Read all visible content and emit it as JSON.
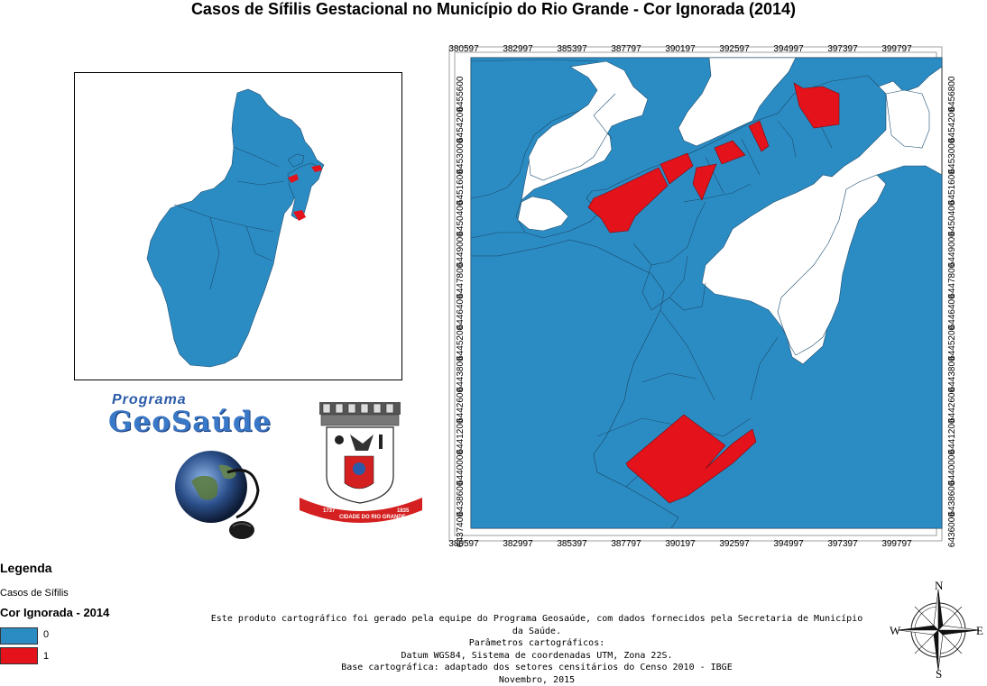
{
  "title": "Casos de Sífilis Gestacional no Município do Rio Grande - Cor Ignorada (2014)",
  "colors": {
    "category_0": "#2b8cc4",
    "category_1": "#e3121b",
    "water": "#ffffff"
  },
  "map": {
    "x_ticks": [
      "380597",
      "382997",
      "385397",
      "387797",
      "390197",
      "392597",
      "394997",
      "397397",
      "399797"
    ],
    "y_ticks_left": [
      "6455600",
      "6454200",
      "6453000",
      "6451600",
      "6450400",
      "6449000",
      "6447800",
      "6446400",
      "6445200",
      "6443800",
      "6442600",
      "6441200",
      "6440000",
      "6438600",
      "6437400"
    ],
    "y_ticks_right": [
      "6456800",
      "6454200",
      "6453000",
      "6451600",
      "6450400",
      "6449000",
      "6447800",
      "6446400",
      "6445200",
      "6443800",
      "6442600",
      "6441200",
      "6440000",
      "6438600",
      "6436000"
    ]
  },
  "logos": {
    "programa": "Programa",
    "geosaude": "GeoSaúde",
    "seal_band": "CIDADE DO RIO GRANDE",
    "seal_year_left": "1737",
    "seal_year_right": "1835"
  },
  "legend": {
    "title": "Legenda",
    "subtitle": "Casos de Sífilis",
    "layer": "Cor Ignorada - 2014",
    "items": [
      {
        "label": "0",
        "color": "#2b8cc4"
      },
      {
        "label": "1",
        "color": "#e3121b"
      }
    ]
  },
  "credits": [
    "Este produto cartográfico foi gerado pela equipe do Programa Geosaúde, com dados fornecidos pela Secretaria de Município da Saúde.",
    "Parâmetros cartográficos:",
    "Datum WGS84, Sistema de coordenadas UTM, Zona 22S.",
    "Base cartográfica: adaptado dos setores censitários do Censo 2010 - IBGE",
    "Novembro, 2015"
  ],
  "compass": {
    "n": "N",
    "s": "S",
    "e": "E",
    "w": "W"
  }
}
